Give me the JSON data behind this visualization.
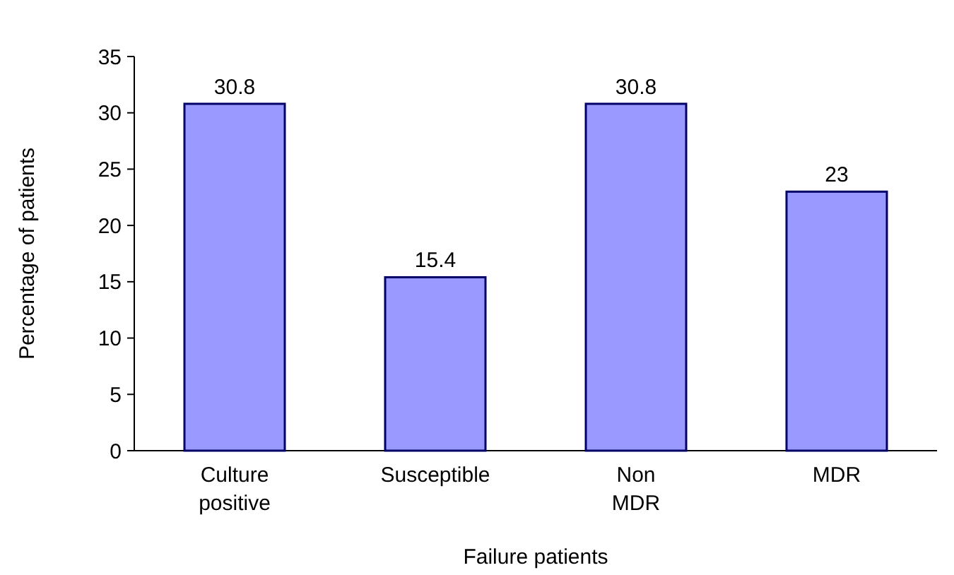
{
  "chart_data": {
    "type": "bar",
    "xlabel": "Failure patients",
    "ylabel": "Percentage of patients",
    "categories": [
      "Culture positive",
      "Susceptible",
      "Non MDR",
      "MDR"
    ],
    "values": [
      30.8,
      15.4,
      30.8,
      23
    ],
    "color": "#9999ff",
    "ylim": [
      0,
      35
    ],
    "yticks": [
      0,
      5,
      10,
      15,
      20,
      25,
      30,
      35
    ],
    "data_labels": true,
    "grid": false
  }
}
